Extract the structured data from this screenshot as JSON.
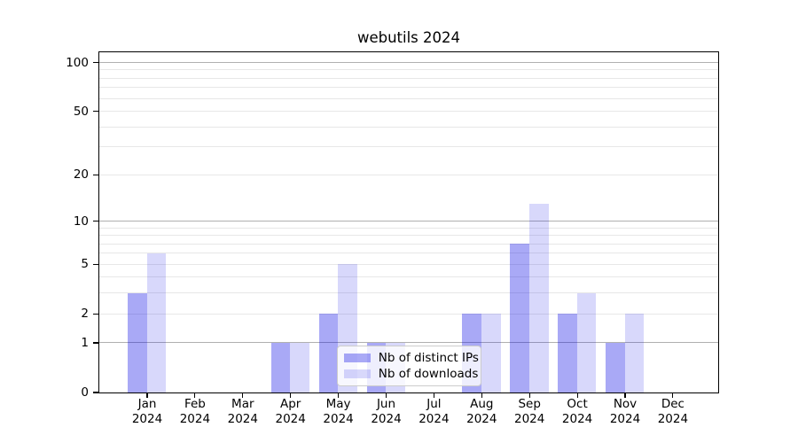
{
  "chart_data": {
    "type": "bar",
    "title": "webutils 2024",
    "categories": [
      "Jan",
      "Feb",
      "Mar",
      "Apr",
      "May",
      "Jun",
      "Jul",
      "Aug",
      "Sep",
      "Oct",
      "Nov",
      "Dec"
    ],
    "category_year": "2024",
    "series": [
      {
        "name": "Nb of distinct IPs",
        "color": "rgba(10,10,230,0.35)",
        "values": [
          3,
          0,
          0,
          1,
          2,
          1,
          0,
          2,
          7,
          2,
          1,
          0
        ]
      },
      {
        "name": "Nb of downloads",
        "color": "rgba(10,10,230,0.16)",
        "values": [
          6,
          0,
          0,
          1,
          5,
          1,
          0,
          2,
          13,
          3,
          2,
          0
        ]
      }
    ],
    "yscale": "log1p",
    "ylim": [
      0,
      115.6
    ],
    "yticks_labeled": [
      100,
      50,
      20,
      10,
      5,
      2,
      1,
      0
    ],
    "yticks_major": [
      1,
      10,
      100
    ],
    "yticks_minor": [
      2,
      3,
      4,
      5,
      6,
      7,
      8,
      9,
      20,
      30,
      40,
      50,
      60,
      70,
      80,
      90
    ],
    "grid": "on",
    "legend_position": "lower center",
    "colors": {
      "major_grid": "#b0b0b0",
      "minor_grid": "#e7e7e7",
      "axis": "#000000"
    }
  }
}
